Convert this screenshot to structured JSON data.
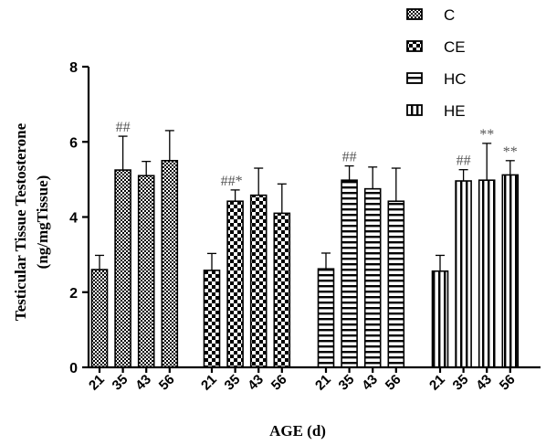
{
  "chart_data": {
    "type": "bar",
    "ylabel_line1": "Testicular Tissue Testosterone",
    "ylabel_line2": "(ng/mgTissue)",
    "xlabel": "AGE (d)",
    "ylim": [
      0,
      8
    ],
    "yticks": [
      "0",
      "2",
      "4",
      "6",
      "8"
    ],
    "groups": [
      {
        "name": "C",
        "pattern": "checker",
        "ages": [
          "21",
          "35",
          "43",
          "56"
        ],
        "values": [
          2.6,
          5.25,
          5.1,
          5.5
        ],
        "errors": [
          0.38,
          0.9,
          0.38,
          0.8
        ],
        "annotations": [
          "",
          "##",
          "",
          ""
        ]
      },
      {
        "name": "CE",
        "pattern": "coarse-checker",
        "ages": [
          "21",
          "35",
          "43",
          "56"
        ],
        "values": [
          2.58,
          4.42,
          4.58,
          4.1
        ],
        "errors": [
          0.45,
          0.3,
          0.72,
          0.78
        ],
        "annotations": [
          "",
          "##*",
          "",
          ""
        ]
      },
      {
        "name": "HC",
        "pattern": "horizontal-stripes",
        "ages": [
          "21",
          "35",
          "43",
          "56"
        ],
        "values": [
          2.62,
          4.98,
          4.75,
          4.42
        ],
        "errors": [
          0.42,
          0.38,
          0.58,
          0.88
        ],
        "annotations": [
          "",
          "##",
          "",
          ""
        ]
      },
      {
        "name": "HE",
        "pattern": "vertical-stripes",
        "ages": [
          "21",
          "35",
          "43",
          "56"
        ],
        "values": [
          2.56,
          4.96,
          4.98,
          5.12
        ],
        "errors": [
          0.42,
          0.3,
          0.98,
          0.38
        ],
        "annotations": [
          "",
          "##",
          "**",
          "**"
        ]
      }
    ],
    "legend_position": "top-right",
    "legend": [
      "C",
      "CE",
      "HC",
      "HE"
    ]
  }
}
